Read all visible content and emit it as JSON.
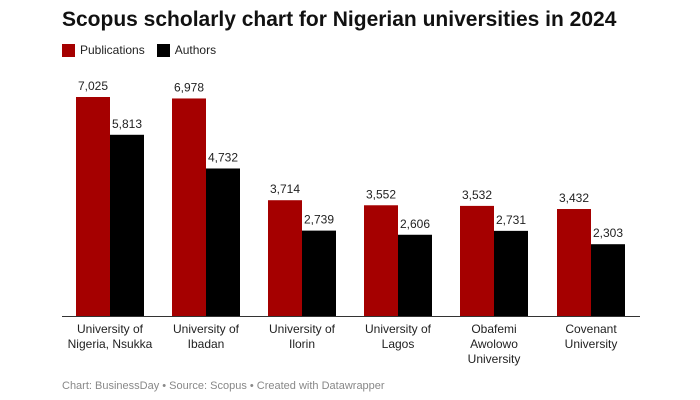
{
  "title": "Scopus scholarly chart for Nigerian universities in 2024",
  "footer": "Chart: BusinessDay • Source: Scopus • Created with Datawrapper",
  "colors": {
    "publications": "#a50000",
    "authors": "#000000"
  },
  "chart_data": {
    "type": "bar",
    "title": "Scopus scholarly chart for Nigerian universities in 2024",
    "categories": [
      [
        "University of",
        "Nigeria, Nsukka"
      ],
      [
        "University of",
        "Ibadan"
      ],
      [
        "University of",
        "Ilorin"
      ],
      [
        "University of",
        "Lagos"
      ],
      [
        "Obafemi",
        "Awolowo",
        "University"
      ],
      [
        "Covenant",
        "University"
      ]
    ],
    "series": [
      {
        "name": "Publications",
        "values": [
          7025,
          6978,
          3714,
          3552,
          3532,
          3432
        ],
        "labels": [
          "7,025",
          "6,978",
          "3,714",
          "3,552",
          "3,532",
          "3,432"
        ]
      },
      {
        "name": "Authors",
        "values": [
          5813,
          4732,
          2739,
          2606,
          2731,
          2303
        ],
        "labels": [
          "5,813",
          "4,732",
          "2,739",
          "2,606",
          "2,731",
          "2,303"
        ]
      }
    ],
    "legend": "top-left",
    "grid": false
  }
}
